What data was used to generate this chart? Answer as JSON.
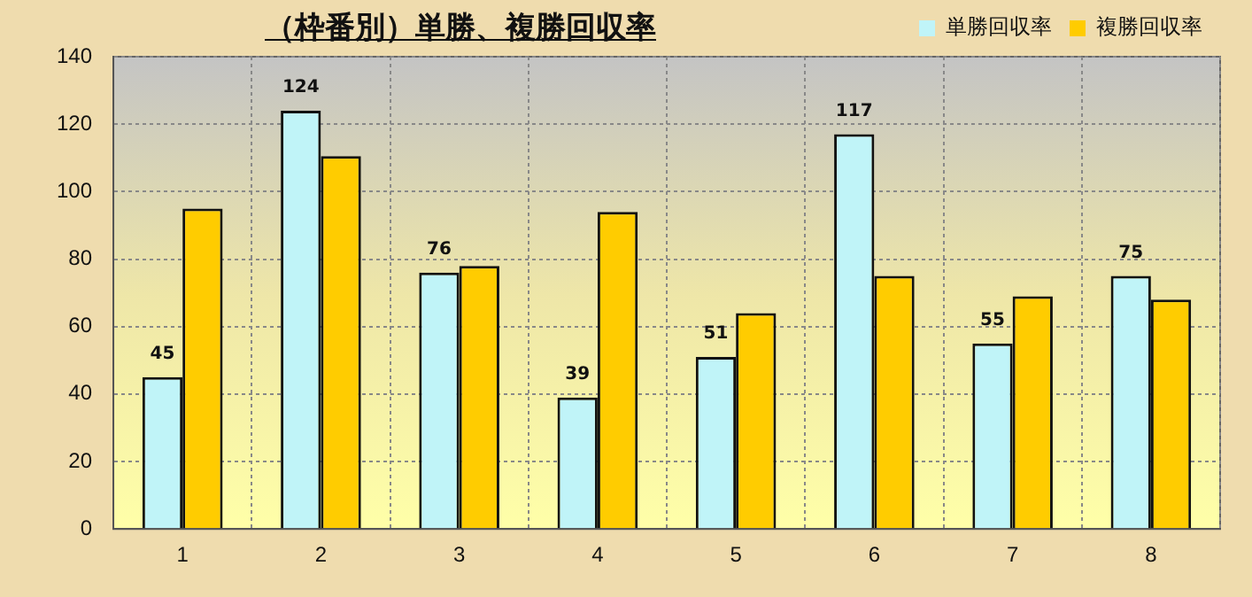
{
  "chart_data": {
    "type": "bar",
    "title": "（枠番別）単勝、複勝回収率",
    "categories": [
      "1",
      "2",
      "3",
      "4",
      "5",
      "6",
      "7",
      "8"
    ],
    "series": [
      {
        "name": "単勝回収率",
        "color": "#c0f4f8",
        "values": [
          45,
          124,
          76,
          39,
          51,
          117,
          55,
          75
        ],
        "value_labels": [
          "45",
          "124",
          "76",
          "39",
          "51",
          "117",
          "55",
          "75"
        ]
      },
      {
        "name": "複勝回収率",
        "color": "#ffcc00",
        "values": [
          95,
          110.5,
          78,
          94,
          64,
          75,
          69,
          68
        ],
        "value_labels": [
          null,
          null,
          null,
          null,
          null,
          null,
          null,
          null
        ]
      }
    ],
    "ylim": [
      0,
      140
    ],
    "yticks": [
      0,
      20,
      40,
      60,
      80,
      100,
      120,
      140
    ],
    "grid": true,
    "legend": "top right"
  }
}
